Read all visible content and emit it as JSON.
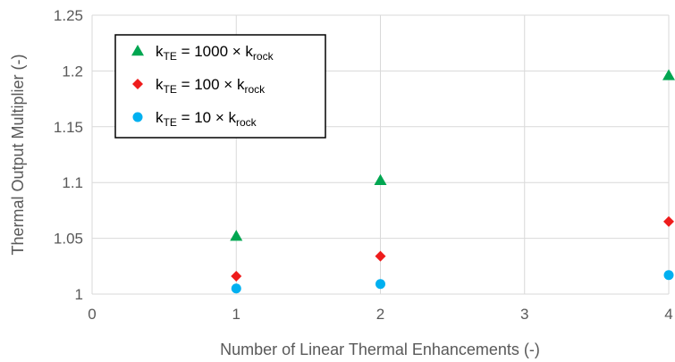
{
  "chart_data": {
    "type": "scatter",
    "xlabel": "Number of Linear Thermal Enhancements (-)",
    "ylabel": "Thermal Output Multiplier (-)",
    "xlim": [
      0,
      4
    ],
    "ylim": [
      1,
      1.25
    ],
    "x_ticks": [
      "0",
      "1",
      "2",
      "3",
      "4"
    ],
    "y_ticks": [
      "1",
      "1.05",
      "1.1",
      "1.15",
      "1.2",
      "1.25"
    ],
    "grid": true,
    "legend_position": "top-left",
    "series": [
      {
        "name": "kTE = 1000 × krock",
        "name_parts": {
          "k1": "k",
          "sub1": "TE",
          "mid": " = 1000 × k",
          "sub2": "rock"
        },
        "marker": "triangle",
        "color": "#00A651",
        "x": [
          1,
          2,
          4
        ],
        "y": [
          1.052,
          1.102,
          1.196
        ]
      },
      {
        "name": "kTE = 100 × krock",
        "name_parts": {
          "k1": "k",
          "sub1": "TE",
          "mid": " = 100 × k",
          "sub2": "rock"
        },
        "marker": "diamond",
        "color": "#EE1C1C",
        "x": [
          1,
          2,
          4
        ],
        "y": [
          1.016,
          1.034,
          1.065
        ]
      },
      {
        "name": "kTE = 10 × krock",
        "name_parts": {
          "k1": "k",
          "sub1": "TE",
          "mid": " = 10 × k",
          "sub2": "rock"
        },
        "marker": "circle",
        "color": "#00B0F0",
        "x": [
          1,
          2,
          4
        ],
        "y": [
          1.005,
          1.009,
          1.017
        ]
      }
    ]
  }
}
